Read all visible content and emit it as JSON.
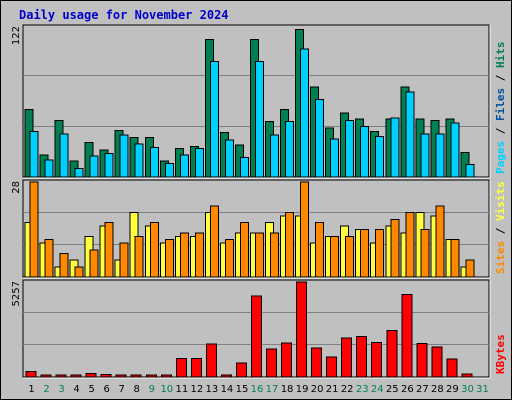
{
  "chart_data": {
    "type": "bar",
    "title": "Daily usage for November 2024",
    "categories": [
      "1",
      "2",
      "3",
      "4",
      "5",
      "6",
      "7",
      "8",
      "9",
      "10",
      "11",
      "12",
      "13",
      "14",
      "15",
      "16",
      "17",
      "18",
      "19",
      "20",
      "21",
      "22",
      "23",
      "24",
      "25",
      "26",
      "27",
      "28",
      "29",
      "30",
      "31"
    ],
    "weekend_days": [
      "2",
      "3",
      "9",
      "10",
      "16",
      "17",
      "23",
      "24",
      "30",
      "31"
    ],
    "colors": {
      "pages": "#00d0ff",
      "files": "#0050a0",
      "hits": "#008050",
      "sites": "#ffff40",
      "visits": "#ff8800",
      "kbytes": "#ff0000",
      "weekday_label": "#000000",
      "weekend_label": "#008050",
      "title": "#0000cc",
      "background": "#c0c0c0"
    },
    "panels": [
      {
        "name": "hits-files-pages",
        "ymax_label": "122",
        "ymax": 122,
        "legend": [
          {
            "text": "Pages",
            "color": "#00d0ff"
          },
          {
            "text": "Files",
            "color": "#0050a0"
          },
          {
            "text": "Hits",
            "color": "#008050"
          }
        ],
        "series": [
          {
            "name": "Hits",
            "values": [
              55,
              18,
              46,
              13,
              28,
              22,
              38,
              32,
              32,
              13,
              23,
              25,
              112,
              36,
              26,
              112,
              45,
              55,
              120,
              73,
              40,
              52,
              47,
              37,
              47,
              73,
              47,
              46,
              47,
              20,
              0
            ]
          },
          {
            "name": "Files",
            "values": [
              18,
              8,
              16,
              4,
              10,
              8,
              14,
              10,
              12,
              6,
              8,
              10,
              48,
              12,
              8,
              48,
              16,
              20,
              80,
              30,
              14,
              20,
              18,
              14,
              18,
              60,
              16,
              16,
              18,
              8,
              0
            ]
          },
          {
            "name": "Pages",
            "values": [
              37,
              14,
              35,
              7,
              17,
              19,
              34,
              27,
              24,
              11,
              18,
              23,
              94,
              30,
              16,
              94,
              34,
              45,
              104,
              63,
              31,
              46,
              41,
              33,
              48,
              69,
              35,
              35,
              44,
              10,
              0
            ]
          }
        ]
      },
      {
        "name": "sites-visits",
        "ymax_label": "28",
        "ymax": 28,
        "legend": [
          {
            "text": "Sites",
            "color": "#ff8800"
          },
          {
            "text": "Visits",
            "color": "#ffff40"
          }
        ],
        "series": [
          {
            "name": "Visits",
            "values": [
              16,
              10,
              3,
              5,
              12,
              15,
              5,
              19,
              15,
              10,
              12,
              12,
              19,
              10,
              13,
              13,
              16,
              18,
              18,
              10,
              12,
              15,
              14,
              10,
              15,
              13,
              19,
              18,
              11,
              3,
              0
            ]
          },
          {
            "name": "Sites",
            "values": [
              28,
              11,
              7,
              3,
              8,
              16,
              10,
              12,
              16,
              11,
              13,
              13,
              21,
              11,
              16,
              13,
              13,
              19,
              28,
              16,
              12,
              12,
              14,
              14,
              17,
              19,
              14,
              21,
              11,
              5,
              0
            ]
          }
        ]
      },
      {
        "name": "kbytes",
        "ymax_label": "5257",
        "ymax": 5257,
        "legend": [
          {
            "text": "KBytes",
            "color": "#ff0000"
          }
        ],
        "series": [
          {
            "name": "KBytes",
            "values": [
              300,
              120,
              120,
              110,
              190,
              140,
              110,
              90,
              120,
              20,
              1020,
              1020,
              1820,
              120,
              780,
              4490,
              1540,
              1880,
              5257,
              1600,
              1120,
              2170,
              2230,
              1910,
              2580,
              4560,
              1860,
              1660,
              990,
              170,
              0
            ]
          }
        ]
      }
    ]
  }
}
